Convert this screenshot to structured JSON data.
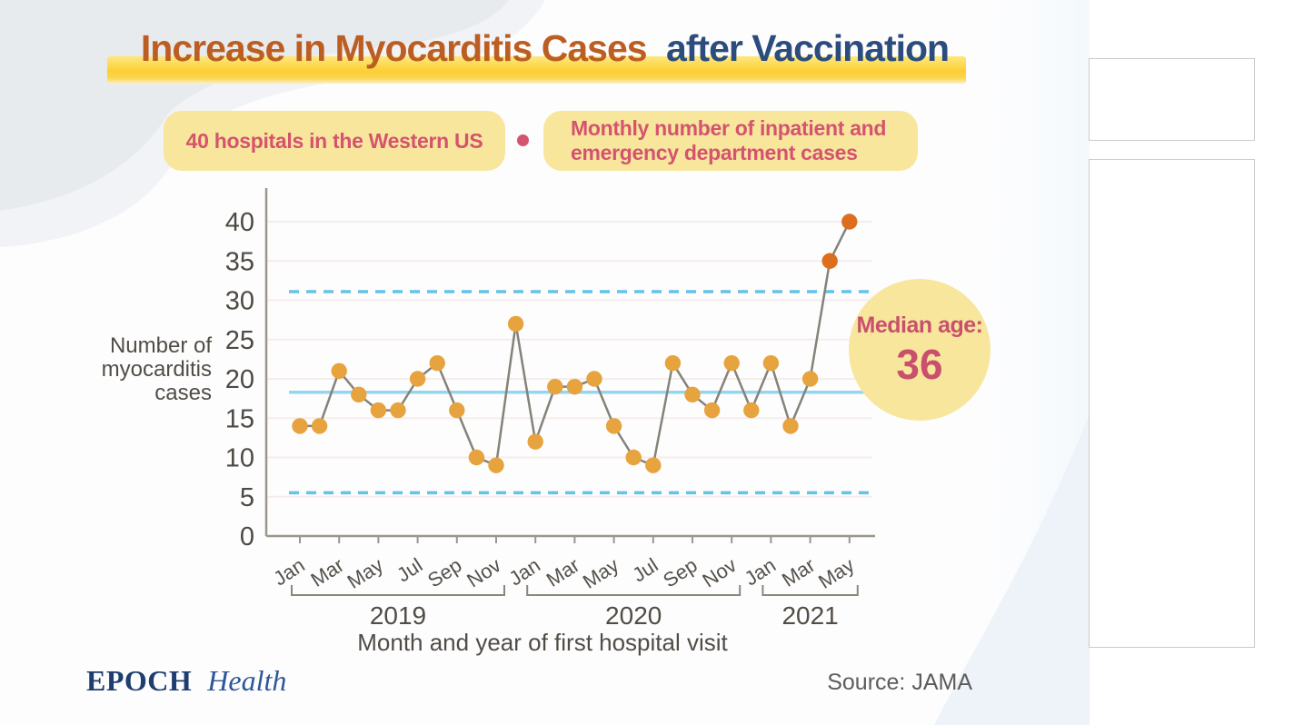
{
  "title": {
    "part1": "Increase in Myocarditis Cases",
    "part2": "after Vaccination"
  },
  "subtitle": {
    "badge1": "40 hospitals in the Western US",
    "badge2_line1": "Monthly number of inpatient and",
    "badge2_line2": "emergency department cases"
  },
  "median_badge": {
    "label": "Median age:",
    "value": "36"
  },
  "footer": {
    "brand_part1": "EPOCH",
    "brand_part2": "Health",
    "source": "Source: JAMA"
  },
  "chart_data": {
    "type": "line",
    "title": "Increase in Myocarditis Cases after Vaccination",
    "xlabel": "Month and year of first hospital visit",
    "ylabel_lines": [
      "Number of",
      "myocarditis",
      "cases"
    ],
    "ylim": [
      0,
      40
    ],
    "ytick_step": 5,
    "grid": true,
    "categories": [
      "Jan 2019",
      "Feb 2019",
      "Mar 2019",
      "Apr 2019",
      "May 2019",
      "Jun 2019",
      "Jul 2019",
      "Aug 2019",
      "Sep 2019",
      "Oct 2019",
      "Nov 2019",
      "Dec 2019",
      "Jan 2020",
      "Feb 2020",
      "Mar 2020",
      "Apr 2020",
      "May 2020",
      "Jun 2020",
      "Jul 2020",
      "Aug 2020",
      "Sep 2020",
      "Oct 2020",
      "Nov 2020",
      "Dec 2020",
      "Jan 2021",
      "Feb 2021",
      "Mar 2021",
      "Apr 2021",
      "May 2021"
    ],
    "values": [
      14,
      14,
      21,
      18,
      16,
      16,
      20,
      22,
      16,
      10,
      9,
      27,
      12,
      19,
      19,
      20,
      14,
      10,
      9,
      22,
      18,
      16,
      22,
      16,
      22,
      14,
      20,
      35,
      40
    ],
    "x_tick_labels": [
      "Jan",
      "Mar",
      "May",
      "Jul",
      "Sep",
      "Nov",
      "Jan",
      "Mar",
      "May",
      "Jul",
      "Sep",
      "Nov",
      "Jan",
      "Mar",
      "May"
    ],
    "year_groups": [
      {
        "label": "2019",
        "start": 0,
        "end": 10
      },
      {
        "label": "2020",
        "start": 12,
        "end": 22
      },
      {
        "label": "2021",
        "start": 24,
        "end": 28
      }
    ],
    "mean_line": 18.3,
    "upper_limit": 31.1,
    "lower_limit": 5.5,
    "highlight_from_index": 27,
    "colors": {
      "point": "#E6A33E",
      "point_highlight": "#DC6E1D",
      "line": "#85827A",
      "mean_line": "#94D5EF",
      "limit_line": "#63C3E9",
      "grid": "#F5EDEA",
      "axis": "#9C968C",
      "text": "#514C45",
      "tick_text": "#55504A"
    }
  }
}
